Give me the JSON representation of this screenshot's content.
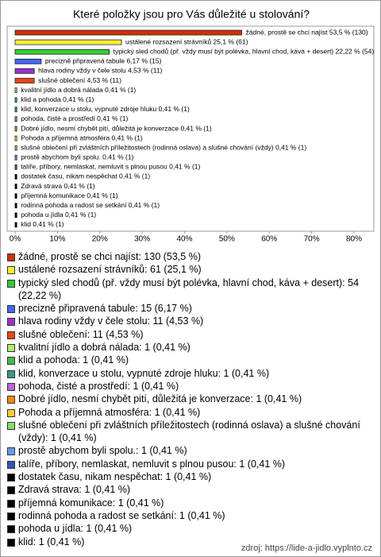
{
  "chart_data": {
    "type": "hbar",
    "title": "Které položky jsou pro Vás důležité u stolování?",
    "values": [
      53.5,
      25.1,
      22.22,
      6.17,
      4.53,
      4.53,
      0.41,
      0.41,
      0.41,
      0.41,
      0.41,
      0.41,
      0.41,
      0.41,
      0.41,
      0.41,
      0.41,
      0.41,
      0.41,
      0.41,
      0.41
    ],
    "value_labels": [
      "žádné, prostě se chci najíst 53,5 % (130)",
      "ustálené rozsazení strávníků 25,1 % (61)",
      "typický sled chodů (př. vždy musí být polévka, hlavní chod, káva + desert) 22,22 % (54)",
      "precizně připravená tabule 6,17 % (15)",
      "hlava rodiny vždy v čele stolu 4,53 % (11)",
      "slušné oblečení 4,53 % (11)",
      "kvalitní jídlo a dobrá nálada 0,41 % (1)",
      "klid a pohoda 0,41 % (1)",
      "klid, konverzace u stolu, vypnuté zdroje hluku 0,41 % (1)",
      "pohoda, čisté a prostředí 0,41 % (1)",
      "Dobré jídlo, nesmí chybět pití, důležitá je konverzace 0,41 % (1)",
      "Pohoda a příjemná atmosféra 0,41 % (1)",
      "slušné oblečení při zvláštních příležitostech (rodinná oslava) a slušné chování (vždy) 0,41 % (1)",
      "prostě abychom byli spolu. 0,41 % (1)",
      "talíře, příbory, nemlaskat, nemluvit s plnou pusou 0,41 % (1)",
      "dostatek času, nikam nespěchat 0,41 % (1)",
      "Zdravá strava 0,41 % (1)",
      "příjemná komunikace 0,41 % (1)",
      "rodinná pohoda a radost se setkání 0,41 % (1)",
      "pohoda u jídla 0,41 % (1)",
      "klid 0,41 % (1)"
    ],
    "legend": [
      "žádné, prostě se chci najíst: 130 (53,5 %)",
      "ustálené rozsazení strávníků: 61 (25,1 %)",
      "typický sled chodů (př. vždy musí být polévka, hlavní chod, káva + desert): 54 (22,22 %)",
      "precizně připravená tabule: 15 (6,17 %)",
      "hlava rodiny vždy v čele stolu: 11 (4,53 %)",
      "slušné oblečení: 11 (4,53 %)",
      "kvalitní jídlo a dobrá nálada: 1 (0,41 %)",
      "klid a pohoda: 1 (0,41 %)",
      "klid, konverzace u stolu, vypnuté zdroje hluku: 1 (0,41 %)",
      "pohoda, čisté a prostředí: 1 (0,41 %)",
      "Dobré jídlo, nesmí chybět pití, důležitá je konverzace: 1 (0,41 %)",
      "Pohoda a příjemná atmosféra: 1 (0,41 %)",
      "slušné oblečení při zvláštních příležitostech (rodinná oslava) a slušné chování (vždy): 1 (0,41 %)",
      "prostě abychom byli spolu.: 1 (0,41 %)",
      "talíře, příbory, nemlaskat, nemluvit s plnou pusou: 1 (0,41 %)",
      "dostatek času, nikam nespěchat: 1 (0,41 %)",
      "Zdravá strava: 1 (0,41 %)",
      "příjemná komunikace: 1 (0,41 %)",
      "rodinná pohoda a radost se setkání: 1 (0,41 %)",
      "pohoda u jídla: 1 (0,41 %)",
      "klid: 1 (0,41 %)"
    ],
    "colors": [
      "#cc3300",
      "#ffee33",
      "#33cc33",
      "#4466ff",
      "#9933cc",
      "#ee4411",
      "#aaee66",
      "#44bb44",
      "#339988",
      "#bb66dd",
      "#ff8800",
      "#ffcc33",
      "#88dd66",
      "#6699ee",
      "#3355bb",
      "#000000",
      "#000000",
      "#000000",
      "#000000",
      "#000000",
      "#000000"
    ],
    "xlim": [
      0,
      80
    ],
    "xticks": [
      {
        "value": 0,
        "label": "0%"
      },
      {
        "value": 10,
        "label": "10%"
      },
      {
        "value": 20,
        "label": "20%"
      },
      {
        "value": 30,
        "label": "30%"
      },
      {
        "value": 40,
        "label": "40%"
      },
      {
        "value": 50,
        "label": "50%"
      },
      {
        "value": 60,
        "label": "60%"
      },
      {
        "value": 70,
        "label": "70%"
      },
      {
        "value": 80,
        "label": "80%"
      }
    ],
    "source": "zdroj: https://lide-a-jidlo.vyplnto.cz"
  }
}
